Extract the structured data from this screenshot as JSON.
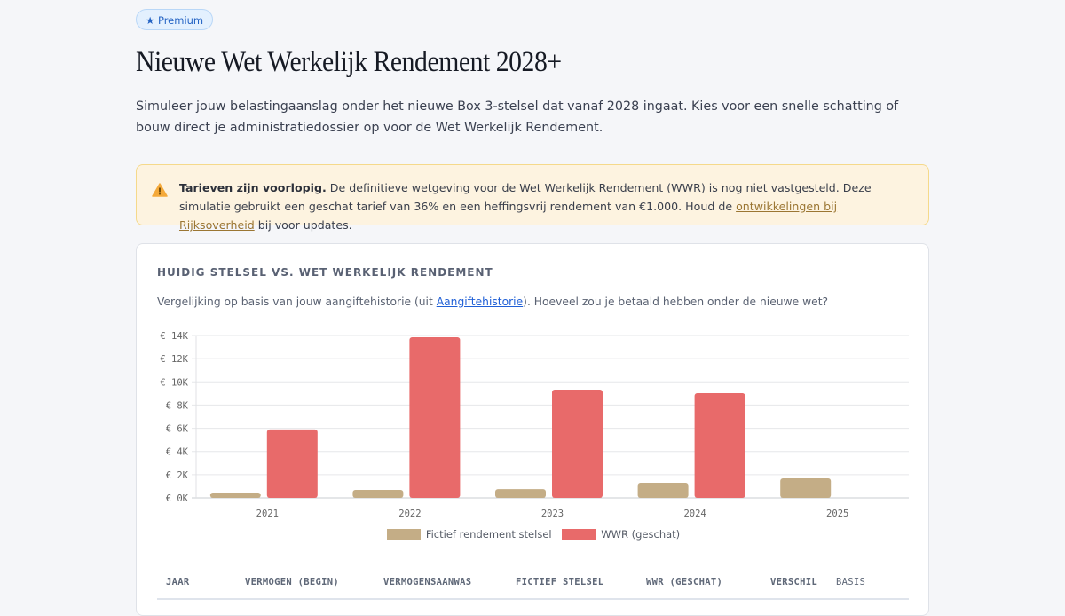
{
  "badge": {
    "icon": "star-icon",
    "label": "★ Premium"
  },
  "title": "Nieuwe Wet Werkelijk Rendement 2028+",
  "intro": "Simuleer jouw belastingaanslag onder het nieuwe Box 3-stelsel dat vanaf 2028 ingaat. Kies voor een snelle schatting of bouw direct je administratiedossier op voor de Wet Werkelijk Rendement.",
  "warning": {
    "icon": "warning-icon",
    "bold": "Tarieven zijn voorlopig.",
    "text": " De definitieve wetgeving voor de Wet Werkelijk Rendement (WWR) is nog niet vastgesteld. Deze simulatie gebruikt een geschat tarief van 36% en een heffingsvrij rendement van €1.000. Houd de ",
    "link": "ontwikkelingen bij Rijksoverheid",
    "after": " bij voor updates."
  },
  "card": {
    "title": "HUIDIG STELSEL VS. WET WERKELIJK RENDEMENT",
    "sub_before": "Vergelijking op basis van jouw aangiftehistorie (uit ",
    "sub_link": "Aangiftehistorie",
    "sub_after": "). Hoeveel zou je betaald hebben onder de nieuwe wet?"
  },
  "chart_data": {
    "type": "bar",
    "categories": [
      "2021",
      "2022",
      "2023",
      "2024",
      "2025"
    ],
    "series": [
      {
        "name": "Fictief rendement stelsel",
        "color": "#c4ad86",
        "values": [
          460,
          690,
          760,
          1300,
          1680
        ]
      },
      {
        "name": "WWR (geschat)",
        "color": "#e86a6a",
        "values": [
          5900,
          13850,
          9330,
          9030,
          null
        ]
      }
    ],
    "ylim": [
      0,
      14000
    ],
    "yticks": [
      0,
      2000,
      4000,
      6000,
      8000,
      10000,
      12000,
      14000
    ],
    "ytick_labels": [
      "€ 0K",
      "€ 2K",
      "€ 4K",
      "€ 6K",
      "€ 8K",
      "€ 10K",
      "€ 12K",
      "€ 14K"
    ],
    "grid": true,
    "legend": "bottom"
  },
  "table": {
    "headers": [
      "JAAR",
      "VERMOGEN (BEGIN)",
      "VERMOGENSAANWAS",
      "FICTIEF STELSEL",
      "WWR (GESCHAT)",
      "VERSCHIL",
      "BASIS"
    ]
  }
}
